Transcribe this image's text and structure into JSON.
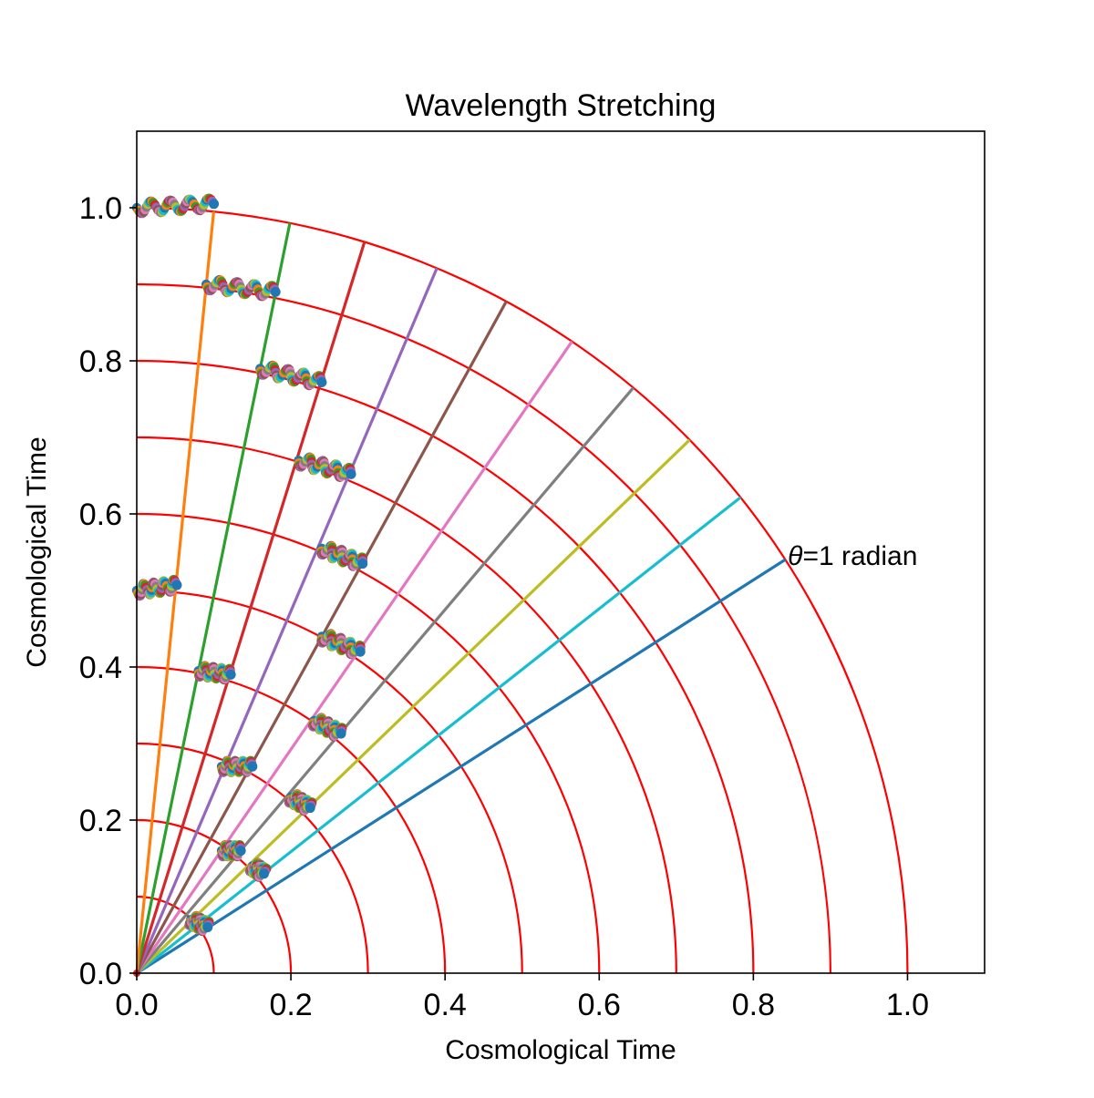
{
  "chart_data": {
    "type": "line",
    "title": "Wavelength Stretching",
    "xlabel": "Cosmological Time",
    "ylabel": "Cosmological Time",
    "xlim": [
      0,
      1.1
    ],
    "ylim": [
      0,
      1.1
    ],
    "xticks": [
      "0.0",
      "0.2",
      "0.4",
      "0.6",
      "0.8",
      "1.0"
    ],
    "yticks": [
      "0.0",
      "0.2",
      "0.4",
      "0.6",
      "0.8",
      "1.0"
    ],
    "grid": false,
    "arc_radii": [
      0.1,
      0.2,
      0.3,
      0.4,
      0.5,
      0.6,
      0.7,
      0.8,
      0.9,
      1.0
    ],
    "arc_color": "#ff0000",
    "rays": [
      {
        "angle_rad": 1.0,
        "color": "#1f77b4"
      },
      {
        "angle_rad": 0.9,
        "color": "#17becf"
      },
      {
        "angle_rad": 0.8,
        "color": "#bcbd22"
      },
      {
        "angle_rad": 0.7,
        "color": "#7f7f7f"
      },
      {
        "angle_rad": 0.6,
        "color": "#e377c2"
      },
      {
        "angle_rad": 0.5,
        "color": "#8c564b"
      },
      {
        "angle_rad": 0.4,
        "color": "#9467bd"
      },
      {
        "angle_rad": 0.3,
        "color": "#d62728"
      },
      {
        "angle_rad": 0.2,
        "color": "#2ca02c"
      },
      {
        "angle_rad": 0.1,
        "color": "#ff7f0e"
      }
    ],
    "ray_angle_measure": "angle from vertical axis",
    "wave_packets": [
      {
        "start": [
          0.0,
          1.0
        ],
        "end": [
          0.1,
          1.005
        ]
      },
      {
        "start": [
          0.09,
          0.9
        ],
        "end": [
          0.18,
          0.89
        ]
      },
      {
        "start": [
          0.16,
          0.79
        ],
        "end": [
          0.24,
          0.772
        ]
      },
      {
        "start": [
          0.21,
          0.67
        ],
        "end": [
          0.278,
          0.652
        ]
      },
      {
        "start": [
          0.24,
          0.555
        ],
        "end": [
          0.293,
          0.535
        ]
      },
      {
        "start": [
          0.24,
          0.44
        ],
        "end": [
          0.29,
          0.42
        ]
      },
      {
        "start": [
          0.23,
          0.33
        ],
        "end": [
          0.265,
          0.313
        ]
      },
      {
        "start": [
          0.2,
          0.23
        ],
        "end": [
          0.225,
          0.216
        ]
      },
      {
        "start": [
          0.15,
          0.14
        ],
        "end": [
          0.165,
          0.13
        ]
      },
      {
        "start": [
          0.07,
          0.07
        ],
        "end": [
          0.092,
          0.06
        ]
      },
      {
        "start": [
          0.11,
          0.27
        ],
        "end": [
          0.15,
          0.27
        ]
      },
      {
        "start": [
          0.11,
          0.16
        ],
        "end": [
          0.135,
          0.16
        ]
      },
      {
        "start": [
          0.0,
          0.5
        ],
        "end": [
          0.052,
          0.507
        ]
      },
      {
        "start": [
          0.08,
          0.395
        ],
        "end": [
          0.122,
          0.39
        ]
      }
    ],
    "packet_colors": [
      "#1f77b4",
      "#ff7f0e",
      "#2ca02c",
      "#d62728",
      "#9467bd",
      "#8c564b",
      "#e377c2",
      "#7f7f7f",
      "#bcbd22",
      "#17becf"
    ],
    "annotation": {
      "symbol": "θ",
      "text": "=1 radian",
      "x": 0.84,
      "y": 0.545
    }
  }
}
